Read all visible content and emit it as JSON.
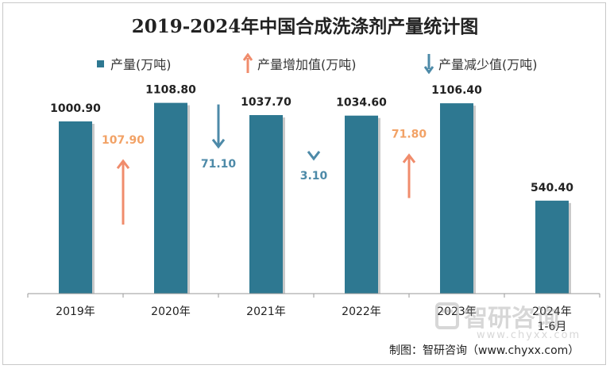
{
  "chart_data": {
    "type": "bar",
    "title": "2019-2024年中国合成洗涤剂产量统计图",
    "categories": [
      "2019年",
      "2020年",
      "2021年",
      "2022年",
      "2023年",
      "2024年\n1-6月"
    ],
    "series": [
      {
        "name": "产量(万吨)",
        "values": [
          1000.9,
          1108.8,
          1037.7,
          1034.6,
          1106.4,
          540.4
        ]
      }
    ],
    "value_labels": [
      "1000.90",
      "1108.80",
      "1037.70",
      "1034.60",
      "1106.40",
      "540.40"
    ],
    "changes": [
      {
        "after": "2020年",
        "direction": "increase",
        "value": 107.9,
        "label": "107.90"
      },
      {
        "after": "2021年",
        "direction": "decrease",
        "value": 71.1,
        "label": "71.10"
      },
      {
        "after": "2022年",
        "direction": "decrease",
        "value": 3.1,
        "label": "3.10"
      },
      {
        "after": "2023年",
        "direction": "increase",
        "value": 71.8,
        "label": "71.80"
      }
    ],
    "ylim": [
      0,
      1250
    ],
    "grid": false,
    "legend_position": "top",
    "colors": {
      "bar": "#2e7891",
      "increase": "#f08c6c",
      "increase_label": "#f2a266",
      "decrease": "#4d8aa8"
    }
  },
  "legend": {
    "production": "产量(万吨)",
    "increase": "产量增加值(万吨)",
    "decrease": "产量减少值(万吨)"
  },
  "watermark": {
    "brand": "智研咨询",
    "url": "www.chyxx.com"
  },
  "credit": "制图：智研咨询（www.chyxx.com）"
}
